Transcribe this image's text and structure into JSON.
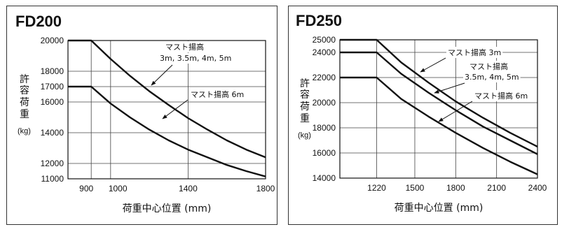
{
  "chart_data": [
    {
      "type": "line",
      "title": "FD200",
      "ylabel": "許容荷重",
      "yunit": "(kg)",
      "xlabel": "荷重中心位置 (mm)",
      "xlim": [
        780,
        1800
      ],
      "ylim": [
        11000,
        20000
      ],
      "xticks": [
        900,
        1000,
        1400,
        1800
      ],
      "xtick_labels": [
        "900",
        "1000",
        "1400",
        "1800"
      ],
      "yticks": [
        11000,
        12000,
        14000,
        16000,
        17000,
        18000,
        20000
      ],
      "grid": true,
      "series": [
        {
          "name": "マスト揚高 3m, 3.5m, 4m, 5m",
          "label_lines": [
            "マスト揚高",
            "3m, 3.5m, 4m, 5m"
          ],
          "x": [
            780,
            900,
            1000,
            1100,
            1200,
            1300,
            1400,
            1500,
            1600,
            1700,
            1800
          ],
          "y": [
            20000,
            20000,
            18800,
            17700,
            16700,
            15800,
            14950,
            14200,
            13500,
            12900,
            12400
          ]
        },
        {
          "name": "マスト揚高 6m",
          "label_lines": [
            "マスト揚高 6m"
          ],
          "x": [
            780,
            900,
            1000,
            1100,
            1200,
            1300,
            1400,
            1500,
            1600,
            1700,
            1800
          ],
          "y": [
            17000,
            17000,
            15900,
            15000,
            14200,
            13500,
            12900,
            12400,
            11900,
            11500,
            11150
          ]
        }
      ]
    },
    {
      "type": "line",
      "title": "FD250",
      "ylabel": "許容荷重",
      "yunit": "(kg)",
      "xlabel": "荷重中心位置 (mm)",
      "xlim": [
        950,
        2400
      ],
      "ylim": [
        14000,
        25000
      ],
      "xticks": [
        1220,
        1500,
        1800,
        2100,
        2400
      ],
      "xtick_labels": [
        "1220",
        "1500",
        "1800",
        "2100",
        "2400"
      ],
      "yticks": [
        14000,
        16000,
        18000,
        20000,
        22000,
        24000,
        25000
      ],
      "grid": true,
      "series": [
        {
          "name": "マスト揚高 3m",
          "label_lines": [
            "マスト揚高 3m"
          ],
          "x": [
            950,
            1220,
            1400,
            1600,
            1800,
            2000,
            2200,
            2400
          ],
          "y": [
            25000,
            25000,
            23200,
            21600,
            20100,
            18800,
            17600,
            16500
          ]
        },
        {
          "name": "マスト揚高 3.5m, 4m, 5m",
          "label_lines": [
            "マスト揚高",
            "3.5m, 4m, 5m"
          ],
          "x": [
            950,
            1220,
            1400,
            1600,
            1800,
            2000,
            2200,
            2400
          ],
          "y": [
            24000,
            24000,
            22300,
            20800,
            19400,
            18100,
            17000,
            15900
          ]
        },
        {
          "name": "マスト揚高 6m",
          "label_lines": [
            "マスト揚高 6m"
          ],
          "x": [
            950,
            1220,
            1400,
            1600,
            1800,
            2000,
            2200,
            2400
          ],
          "y": [
            22000,
            22000,
            20300,
            18900,
            17600,
            16400,
            15300,
            14300
          ]
        }
      ]
    }
  ]
}
